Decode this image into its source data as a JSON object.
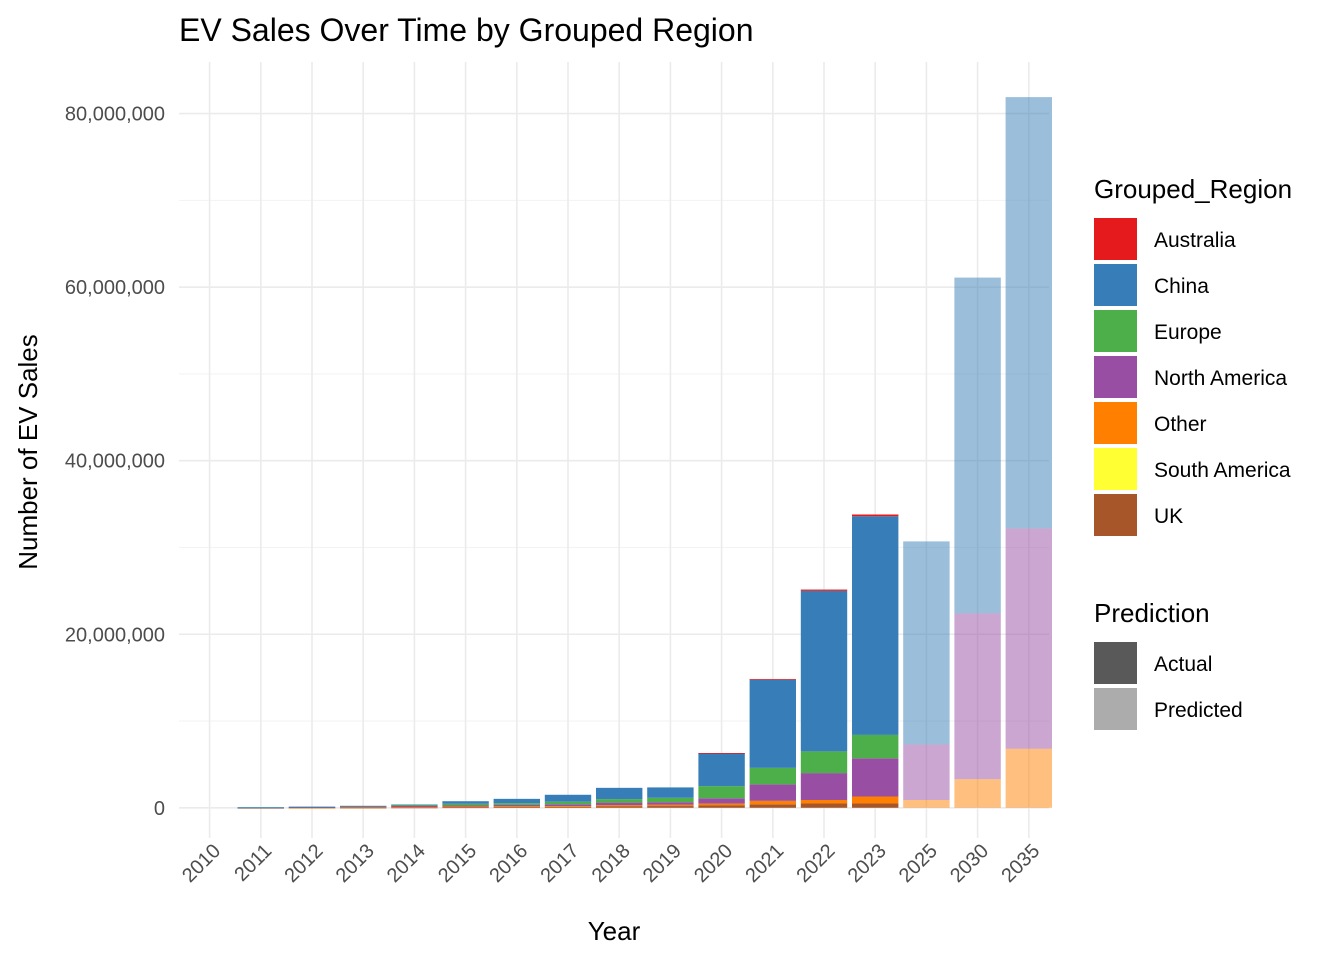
{
  "chart_data": {
    "type": "bar",
    "stacked": true,
    "title": "EV Sales Over Time by Grouped Region",
    "xlabel": "Year",
    "ylabel": "Number of EV Sales",
    "ylim": [
      -3500000,
      86500000
    ],
    "y_ticks": [
      0,
      20000000,
      40000000,
      60000000,
      80000000
    ],
    "y_tick_labels": [
      "0",
      "20,000,000",
      "40,000,000",
      "60,000,000",
      "80,000,000"
    ],
    "grid": true,
    "legend_position": "right",
    "categories": [
      "2010",
      "2011",
      "2012",
      "2013",
      "2014",
      "2015",
      "2016",
      "2017",
      "2018",
      "2019",
      "2020",
      "2021",
      "2022",
      "2023",
      "2025",
      "2030",
      "2035"
    ],
    "prediction": [
      "Actual",
      "Actual",
      "Actual",
      "Actual",
      "Actual",
      "Actual",
      "Actual",
      "Actual",
      "Actual",
      "Actual",
      "Actual",
      "Actual",
      "Actual",
      "Actual",
      "Predicted",
      "Predicted",
      "Predicted"
    ],
    "series": [
      {
        "name": "UK",
        "color": "#A65628",
        "values": [
          0,
          2000,
          10000,
          20000,
          40000,
          60000,
          80000,
          100000,
          150000,
          200000,
          300000,
          400000,
          500000,
          500000,
          0,
          0,
          0
        ]
      },
      {
        "name": "South America",
        "color": "#FFFF33",
        "values": [
          0,
          0,
          0,
          0,
          0,
          0,
          0,
          0,
          0,
          0,
          0,
          0,
          0,
          0,
          0,
          0,
          0
        ]
      },
      {
        "name": "Other",
        "color": "#FF7F00",
        "values": [
          0,
          2000,
          10000,
          20000,
          50000,
          80000,
          100000,
          100000,
          150000,
          150000,
          200000,
          400000,
          400000,
          800000,
          900000,
          3300000,
          6800000
        ]
      },
      {
        "name": "North America",
        "color": "#984EA3",
        "values": [
          0,
          20000,
          50000,
          100000,
          120000,
          120000,
          150000,
          200000,
          300000,
          300000,
          600000,
          1900000,
          3100000,
          4400000,
          6400000,
          19100000,
          25400000
        ]
      },
      {
        "name": "Europe",
        "color": "#4DAF4A",
        "values": [
          0,
          30000,
          50000,
          70000,
          100000,
          200000,
          200000,
          300000,
          400000,
          500000,
          1400000,
          1900000,
          2500000,
          2700000,
          0,
          0,
          0
        ]
      },
      {
        "name": "China",
        "color": "#377EB8",
        "values": [
          0,
          5000,
          10000,
          20000,
          70000,
          300000,
          500000,
          800000,
          1300000,
          1200000,
          3800000,
          10200000,
          18500000,
          25200000,
          23400000,
          38700000,
          49700000
        ]
      },
      {
        "name": "Australia",
        "color": "#E41A1C",
        "values": [
          0,
          0,
          0,
          0,
          0,
          0,
          0,
          0,
          0,
          0,
          10000,
          20000,
          150000,
          200000,
          0,
          0,
          0
        ]
      }
    ],
    "legends": {
      "region": {
        "title": "Grouped_Region",
        "items": [
          {
            "label": "Australia",
            "color": "#E41A1C"
          },
          {
            "label": "China",
            "color": "#377EB8"
          },
          {
            "label": "Europe",
            "color": "#4DAF4A"
          },
          {
            "label": "North America",
            "color": "#984EA3"
          },
          {
            "label": "Other",
            "color": "#FF7F00"
          },
          {
            "label": "South America",
            "color": "#FFFF33"
          },
          {
            "label": "UK",
            "color": "#A65628"
          }
        ]
      },
      "prediction": {
        "title": "Prediction",
        "items": [
          {
            "label": "Actual",
            "color": "#595959"
          },
          {
            "label": "Predicted",
            "color": "#ACACAC"
          }
        ]
      }
    }
  }
}
